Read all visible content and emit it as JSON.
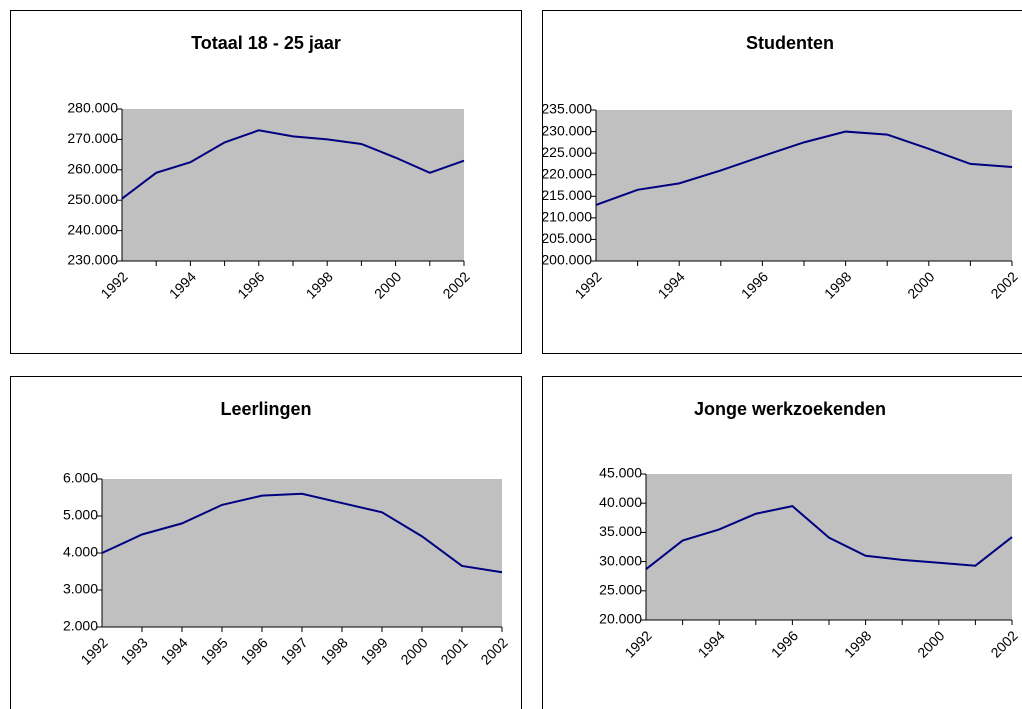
{
  "chart_data": [
    {
      "type": "line",
      "title": "Totaal 18 - 25 jaar",
      "categories": [
        "1992",
        null,
        "1994",
        null,
        "1996",
        null,
        "1998",
        null,
        "2000",
        null,
        "2002"
      ],
      "values": [
        250500,
        259000,
        262500,
        269000,
        273000,
        271000,
        270000,
        268500,
        264000,
        259000,
        263000
      ],
      "color": "#000080",
      "background": "#c0c0c0",
      "ylim": [
        230000,
        280000
      ],
      "yticks": [
        {
          "value": 230000,
          "label": "230.000"
        },
        {
          "value": 240000,
          "label": "240.000"
        },
        {
          "value": 250000,
          "label": "250.000"
        },
        {
          "value": 260000,
          "label": "260.000"
        },
        {
          "value": 270000,
          "label": "270.000"
        },
        {
          "value": 280000,
          "label": "280.000"
        }
      ]
    },
    {
      "type": "line",
      "title": "Studenten",
      "categories": [
        "1992",
        null,
        "1994",
        null,
        "1996",
        null,
        "1998",
        null,
        "2000",
        null,
        "2002"
      ],
      "values": [
        213000,
        216500,
        218000,
        221000,
        224300,
        227500,
        230000,
        229300,
        226000,
        222500,
        221800
      ],
      "color": "#000080",
      "background": "#c0c0c0",
      "ylim": [
        200000,
        235000
      ],
      "yticks": [
        {
          "value": 200000,
          "label": "200.000"
        },
        {
          "value": 205000,
          "label": "205.000"
        },
        {
          "value": 210000,
          "label": "210.000"
        },
        {
          "value": 215000,
          "label": "215.000"
        },
        {
          "value": 220000,
          "label": "220.000"
        },
        {
          "value": 225000,
          "label": "225.000"
        },
        {
          "value": 230000,
          "label": "230.000"
        },
        {
          "value": 235000,
          "label": "235.000"
        }
      ]
    },
    {
      "type": "line",
      "title": "Leerlingen",
      "categories": [
        "1992",
        "1993",
        "1994",
        "1995",
        "1996",
        "1997",
        "1998",
        "1999",
        "2000",
        "2001",
        "2002"
      ],
      "values": [
        4000,
        4500,
        4800,
        5300,
        5550,
        5600,
        5350,
        5100,
        4450,
        3650,
        3480
      ],
      "color": "#000080",
      "background": "#c0c0c0",
      "ylim": [
        2000,
        6000
      ],
      "yticks": [
        {
          "value": 2000,
          "label": "2.000"
        },
        {
          "value": 3000,
          "label": "3.000"
        },
        {
          "value": 4000,
          "label": "4.000"
        },
        {
          "value": 5000,
          "label": "5.000"
        },
        {
          "value": 6000,
          "label": "6.000"
        }
      ]
    },
    {
      "type": "line",
      "title": "Jonge werkzoekenden",
      "categories": [
        "1992",
        null,
        "1994",
        null,
        "1996",
        null,
        "1998",
        null,
        "2000",
        null,
        "2002"
      ],
      "values": [
        28700,
        33600,
        35500,
        38200,
        39500,
        34100,
        31000,
        30300,
        29800,
        29300,
        34200
      ],
      "color": "#000080",
      "background": "#c0c0c0",
      "ylim": [
        20000,
        45000
      ],
      "yticks": [
        {
          "value": 20000,
          "label": "20.000"
        },
        {
          "value": 25000,
          "label": "25.000"
        },
        {
          "value": 30000,
          "label": "30.000"
        },
        {
          "value": 35000,
          "label": "35.000"
        },
        {
          "value": 40000,
          "label": "40.000"
        },
        {
          "value": 45000,
          "label": "45.000"
        }
      ]
    }
  ]
}
